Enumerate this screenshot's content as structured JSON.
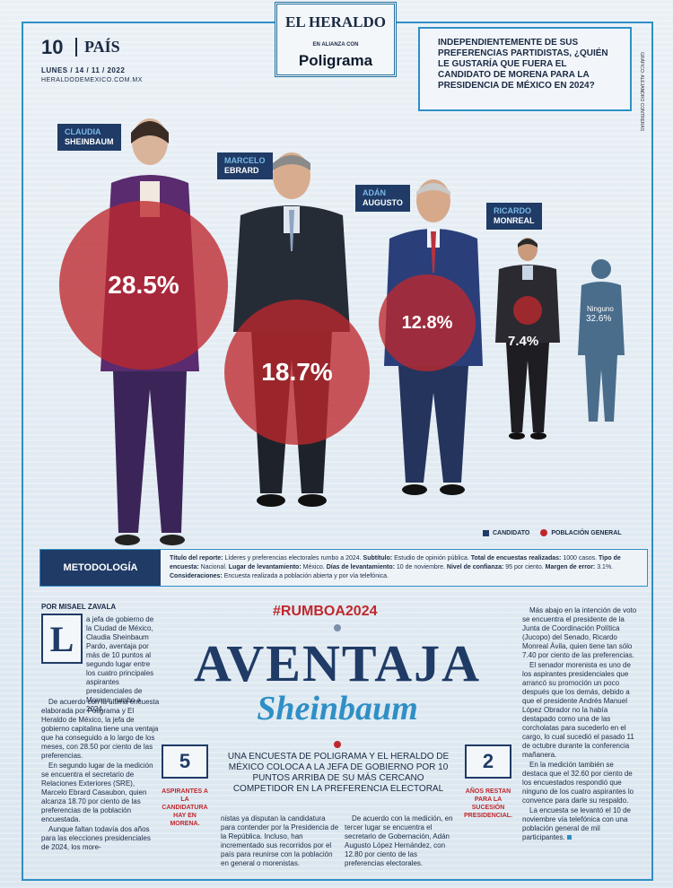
{
  "header": {
    "section_number": "10",
    "section_name": "PAÍS",
    "date": "LUNES / 14 / 11 / 2022",
    "website": "HERALDODEMEXICO.COM.MX",
    "masthead_title": "EL HERALDO",
    "masthead_alliance": "EN ALIANZA CON",
    "masthead_partner": "Poligrama",
    "question": "INDEPENDIENTEMENTE DE SUS PREFERENCIAS PARTIDISTAS, ¿QUIÉN LE GUSTARÍA QUE FUERA EL CANDIDATO DE MORENA PARA LA PRESIDENCIA DE MÉXICO EN 2024?",
    "credit": "GRÁFICO: ALEJANDRO CONTRERAS"
  },
  "candidates": [
    {
      "first": "CLAUDIA",
      "last": "SHEINBAUM",
      "pct_label": "28.5%"
    },
    {
      "first": "MARCELO",
      "last": "EBRARD",
      "pct_label": "18.7%"
    },
    {
      "first": "ADÁN",
      "last": "AUGUSTO",
      "pct_label": "12.8%"
    },
    {
      "first": "RICARDO",
      "last": "MONREAL",
      "pct_label": "7.4%"
    },
    {
      "first": "",
      "last": "Ninguno",
      "pct_label": "32.6%"
    }
  ],
  "legend": {
    "candidate": "CANDIDATO",
    "population": "POBLACIÓN GENERAL"
  },
  "colors": {
    "navy": "#1f3b66",
    "red": "#be282d",
    "blue": "#2f8fc6"
  },
  "chart_data": {
    "type": "bar",
    "title": "INDEPENDIENTEMENTE DE SUS PREFERENCIAS PARTIDISTAS, ¿QUIÉN LE GUSTARÍA QUE FUERA EL CANDIDATO DE MORENA PARA LA PRESIDENCIA DE MÉXICO EN 2024?",
    "categories": [
      "CLAUDIA SHEINBAUM",
      "MARCELO EBRARD",
      "ADÁN AUGUSTO",
      "RICARDO MONREAL",
      "Ninguno"
    ],
    "values": [
      28.5,
      18.7,
      12.8,
      7.4,
      32.6
    ],
    "unit": "%"
  },
  "methodology": {
    "tag": "METODOLOGÍA",
    "l1": "Título del reporte:",
    "v1": " Líderes y preferencias electorales rumbo a 2024. ",
    "l2": "Subtítulo:",
    "v2": " Estudio de opinión pública. ",
    "l3": "Total de encuestas realizadas:",
    "v3": " 1000 casos. ",
    "l4": "Tipo de encuesta:",
    "v4": " Nacional. ",
    "l5": "Lugar de levantamiento:",
    "v5": " México. ",
    "l6": "Días de levantamiento:",
    "v6": " 10 de noviembre. ",
    "l7": "Nivel de confianza:",
    "v7": " 95 por ciento. ",
    "l8": "Margen de error:",
    "v8": " 3.1%. ",
    "l9": "Consideraciones:",
    "v9": " Encuesta realizada a población abierta y por vía telefónica."
  },
  "article": {
    "byline": "POR MISAEL ZAVALA",
    "dropcap": "L",
    "hashtag": "#RUMBOA2024",
    "title": "AVENTAJA",
    "subtitle": "Sheinbaum",
    "deck": "UNA ENCUESTA DE POLIGRAMA Y EL HERALDO DE MÉXICO COLOCA A LA JEFA DE GOBIERNO POR 10 PUNTOS ARRIBA DE SU MÁS CERCANO COMPETIDOR EN LA PREFERENCIA ELECTORAL",
    "stat1_number": "5",
    "stat1_text": "ASPIRANTES A LA CANDIDATURA HAY EN MORENA.",
    "stat2_number": "2",
    "stat2_text": "AÑOS RESTAN PARA LA SUCESIÓN PRESIDENCIAL.",
    "col1_p1": "a jefa de gobierno de la Ciudad de México, Claudia Sheinbaum Pardo, aventaja por más de 10 puntos al segundo lugar entre los cuatro principales aspirantes presidenciales de Morena, rumbo a 2024.",
    "col1_p2": "De acuerdo con la última encuesta elaborada por Poligrama y El Heraldo de México, la jefa de gobierno capitalina tiene una ventaja que ha conseguido a lo largo de los meses, con 28.50 por ciento de las preferencias.",
    "col1_p3": "En segundo lugar de la medición se encuentra el secretario de Relaciones Exteriores (SRE), Marcelo Ebrard Casaubon, quien alcanza 18.70 por ciento de las preferencias de la población encuestada.",
    "col1_p4": "Aunque faltan todavía dos años para las elecciones presidenciales de 2024, los more-",
    "col2_p1": "nistas ya disputan la candidatura para contender por la Presidencia de la República. Incluso, han incrementado sus recorridos por el país para reunirse con la población en general o morenistas.",
    "col3_p1": "De acuerdo con la medición, en tercer lugar se encuentra el secretario de Gobernación, Adán Augusto López Hernández, con 12.80 por ciento de las preferencias electorales.",
    "col4_p1": "Más abajo en la intención de voto se encuentra el presidente de la Junta de Coordinación Política (Jucopo) del Senado, Ricardo Monreal Ávila, quien tiene tan sólo 7.40 por ciento de las preferencias.",
    "col4_p2": "El senador morenista es uno de los aspirantes presidenciales que arrancó su promoción un poco después que los demás, debido a que el presidente Andrés Manuel López Obrador no la había destapado como una de las corcholatas para sucederlo en el cargo, lo cual sucedió el pasado 11 de octubre durante la conferencia mañanera.",
    "col4_p3": "En la medición también se destaca que el 32.60 por ciento de los encuestados respondió que ninguno de los cuatro aspirantes lo convence para darle su respaldo.",
    "col4_p4": "La encuesta se levantó el 10 de noviembre vía telefónica con una población general de mil participantes."
  }
}
